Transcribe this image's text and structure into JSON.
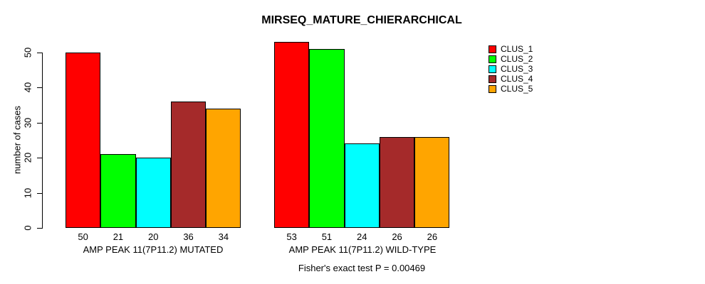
{
  "page": {
    "background": "#FFFFFF"
  },
  "chart_data": {
    "type": "bar",
    "title": "MIRSEQ_MATURE_CHIERARCHICAL",
    "ylabel": "number of cases",
    "xlabel": "",
    "ylim": [
      0,
      50
    ],
    "y_ticks": [
      0,
      10,
      20,
      30,
      40,
      50
    ],
    "grid": false,
    "legend_position": "top-right",
    "categories": [
      "AMP PEAK 11(7P11.2) MUTATED",
      "AMP PEAK 11(7P11.2) WILD-TYPE"
    ],
    "series": [
      {
        "name": "CLUS_1",
        "color": "#FF0000",
        "values": [
          50,
          53
        ]
      },
      {
        "name": "CLUS_2",
        "color": "#00FF00",
        "values": [
          21,
          51
        ]
      },
      {
        "name": "CLUS_3",
        "color": "#00FFFF",
        "values": [
          20,
          24
        ]
      },
      {
        "name": "CLUS_4",
        "color": "#A52A2A",
        "values": [
          36,
          26
        ]
      },
      {
        "name": "CLUS_5",
        "color": "#FFA500",
        "values": [
          34,
          26
        ]
      }
    ],
    "bar_value_labels": {
      "shown": true,
      "position": "below-axis"
    },
    "footnote": "Fisher's exact test P = 0.00469"
  }
}
